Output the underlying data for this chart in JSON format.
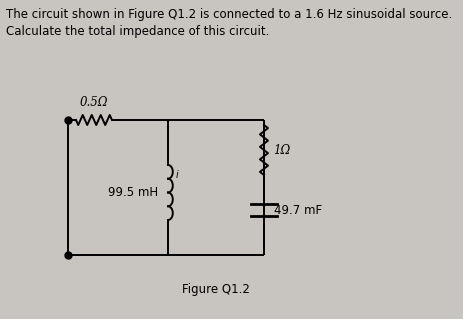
{
  "background_color": "#c8c4c0",
  "circuit_bg": "#e8e6e2",
  "title_text1": "The circuit shown in Figure Q1.2 is connected to a 1.6 Hz sinusoidal source.",
  "title_text2": "Calculate the total impedance of this circuit.",
  "title_fontsize": 8.5,
  "figure_label": "Figure Q1.2",
  "label_fontsize": 8.5,
  "resistor_top_label": "0.5Ω",
  "inductor_label": "99.5 mH",
  "resistor_right_label": "1Ω",
  "capacitor_label": "49.7 mF",
  "current_label": "i"
}
